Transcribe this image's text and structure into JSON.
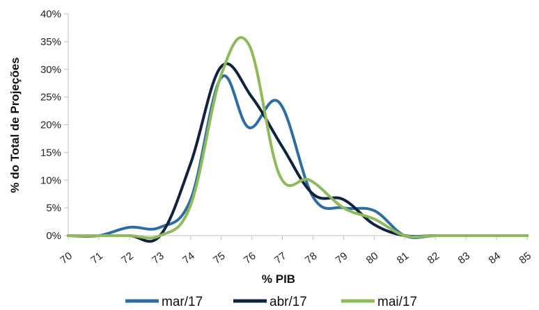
{
  "chart_data": {
    "type": "line",
    "title": "",
    "xlabel": "% PIB",
    "ylabel": "% do Total de Projeções",
    "x": [
      70,
      71,
      72,
      73,
      74,
      75,
      76,
      77,
      78,
      79,
      80,
      81,
      82,
      83,
      84,
      85
    ],
    "xlim": [
      70,
      85
    ],
    "ylim": [
      0,
      40
    ],
    "yticks": [
      "0%",
      "5%",
      "10%",
      "15%",
      "20%",
      "25%",
      "30%",
      "35%",
      "40%"
    ],
    "grid": false,
    "legend_position": "bottom",
    "smooth": true,
    "series": [
      {
        "name": "mar/17",
        "color": "#2e6da4",
        "points": [
          [
            70,
            0
          ],
          [
            71,
            0
          ],
          [
            72,
            1.5
          ],
          [
            73,
            1.5
          ],
          [
            74,
            6.5
          ],
          [
            75,
            28.5
          ],
          [
            75.9,
            19.5
          ],
          [
            76.9,
            24
          ],
          [
            78,
            7
          ],
          [
            79,
            5
          ],
          [
            80,
            4.5
          ],
          [
            81,
            0
          ],
          [
            82,
            0
          ],
          [
            83,
            0
          ],
          [
            84,
            0
          ],
          [
            85,
            0
          ]
        ]
      },
      {
        "name": "abr/17",
        "color": "#0f2340",
        "points": [
          [
            70,
            0
          ],
          [
            71,
            0
          ],
          [
            72,
            0
          ],
          [
            73,
            0
          ],
          [
            74,
            13
          ],
          [
            75,
            30.5
          ],
          [
            76,
            25
          ],
          [
            77,
            16
          ],
          [
            78,
            7.5
          ],
          [
            79,
            6.5
          ],
          [
            80,
            2
          ],
          [
            81,
            0
          ],
          [
            82,
            0
          ],
          [
            83,
            0
          ],
          [
            84,
            0
          ],
          [
            85,
            0
          ]
        ]
      },
      {
        "name": "mai/17",
        "color": "#8fba5a",
        "points": [
          [
            70,
            0
          ],
          [
            71,
            0
          ],
          [
            72,
            0
          ],
          [
            73,
            0
          ],
          [
            74,
            5.5
          ],
          [
            75,
            29
          ],
          [
            75.9,
            34.5
          ],
          [
            76.9,
            11
          ],
          [
            77.9,
            10
          ],
          [
            79,
            5
          ],
          [
            80,
            3
          ],
          [
            81,
            0
          ],
          [
            82,
            0
          ],
          [
            83,
            0
          ],
          [
            84,
            0
          ],
          [
            85,
            0
          ]
        ]
      }
    ]
  }
}
